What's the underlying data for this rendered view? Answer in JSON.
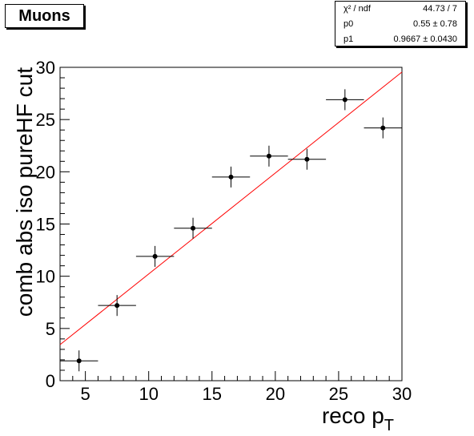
{
  "chart_data": {
    "type": "scatter",
    "title": "Muons",
    "xlabel": "reco p",
    "xlabel_subscript": "T",
    "ylabel": "comb abs iso pureHF cut",
    "xlim": [
      3,
      30
    ],
    "ylim": [
      0,
      30
    ],
    "xticks": [
      5,
      10,
      15,
      20,
      25,
      30
    ],
    "yticks": [
      0,
      5,
      10,
      15,
      20,
      25,
      30
    ],
    "points": [
      {
        "x": 4.5,
        "y": 1.9,
        "xerr": 1.5,
        "yerr": 1.0
      },
      {
        "x": 7.5,
        "y": 7.2,
        "xerr": 1.5,
        "yerr": 1.0
      },
      {
        "x": 10.5,
        "y": 11.9,
        "xerr": 1.5,
        "yerr": 1.0
      },
      {
        "x": 13.5,
        "y": 14.6,
        "xerr": 1.5,
        "yerr": 1.0
      },
      {
        "x": 16.5,
        "y": 19.5,
        "xerr": 1.5,
        "yerr": 1.0
      },
      {
        "x": 19.5,
        "y": 21.5,
        "xerr": 1.5,
        "yerr": 1.0
      },
      {
        "x": 22.5,
        "y": 21.2,
        "xerr": 1.5,
        "yerr": 1.0
      },
      {
        "x": 25.5,
        "y": 26.9,
        "xerr": 1.5,
        "yerr": 1.0
      },
      {
        "x": 28.5,
        "y": 24.2,
        "xerr": 1.5,
        "yerr": 1.0
      }
    ],
    "fit": {
      "p0": 0.55,
      "p1": 0.9667,
      "color": "#ff0000"
    },
    "stats": [
      {
        "name": "χ² / ndf",
        "value": "44.73 / 7"
      },
      {
        "name": "p0",
        "value": "0.55 ± 0.78"
      },
      {
        "name": "p1",
        "value": "0.9667 ± 0.0430"
      }
    ]
  }
}
